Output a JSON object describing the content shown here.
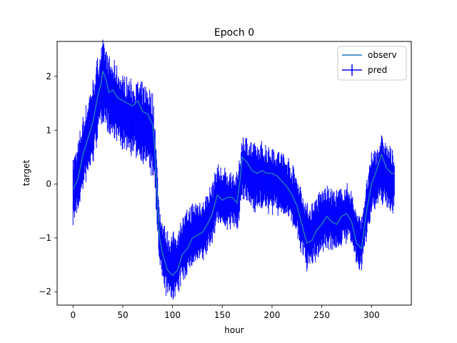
{
  "chart_data": {
    "type": "line",
    "title": "Epoch 0",
    "xlabel": "hour",
    "ylabel": "target",
    "xlim": [
      -16,
      340
    ],
    "ylim": [
      -2.25,
      2.65
    ],
    "xticks": [
      0,
      50,
      100,
      150,
      200,
      250,
      300
    ],
    "yticks": [
      -2,
      -1,
      0,
      1,
      2
    ],
    "xtick_labels": [
      "0",
      "50",
      "100",
      "150",
      "200",
      "250",
      "300"
    ],
    "ytick_labels": [
      "−2",
      "−1",
      "0",
      "1",
      "2"
    ],
    "legend": {
      "placement": "top-right",
      "entries": [
        "observ",
        "pred"
      ]
    },
    "grid": false,
    "series": [
      {
        "name": "observ",
        "color": "#1f77b4",
        "points": [
          [
            0,
            -0.1
          ],
          [
            5,
            0.1
          ],
          [
            10,
            0.55
          ],
          [
            15,
            0.85
          ],
          [
            20,
            1.15
          ],
          [
            25,
            1.65
          ],
          [
            28,
            1.85
          ],
          [
            30,
            2.1
          ],
          [
            33,
            1.95
          ],
          [
            36,
            1.7
          ],
          [
            40,
            1.75
          ],
          [
            45,
            1.6
          ],
          [
            50,
            1.55
          ],
          [
            55,
            1.5
          ],
          [
            60,
            1.45
          ],
          [
            65,
            1.55
          ],
          [
            70,
            1.35
          ],
          [
            75,
            1.3
          ],
          [
            80,
            1.1
          ],
          [
            82,
            0.7
          ],
          [
            85,
            -0.4
          ],
          [
            87,
            -1.0
          ],
          [
            90,
            -1.3
          ],
          [
            95,
            -1.6
          ],
          [
            100,
            -1.7
          ],
          [
            105,
            -1.6
          ],
          [
            110,
            -1.3
          ],
          [
            115,
            -1.2
          ],
          [
            120,
            -1.0
          ],
          [
            125,
            -0.95
          ],
          [
            130,
            -0.9
          ],
          [
            135,
            -0.75
          ],
          [
            140,
            -0.55
          ],
          [
            145,
            -0.2
          ],
          [
            150,
            -0.3
          ],
          [
            155,
            -0.25
          ],
          [
            160,
            -0.25
          ],
          [
            165,
            -0.35
          ],
          [
            168,
            0.1
          ],
          [
            170,
            0.5
          ],
          [
            175,
            0.4
          ],
          [
            180,
            0.25
          ],
          [
            185,
            0.2
          ],
          [
            190,
            0.25
          ],
          [
            195,
            0.2
          ],
          [
            200,
            0.2
          ],
          [
            205,
            0.15
          ],
          [
            210,
            0.05
          ],
          [
            215,
            -0.05
          ],
          [
            220,
            -0.2
          ],
          [
            225,
            -0.4
          ],
          [
            230,
            -0.75
          ],
          [
            235,
            -1.1
          ],
          [
            240,
            -1.05
          ],
          [
            245,
            -0.85
          ],
          [
            250,
            -0.75
          ],
          [
            255,
            -0.6
          ],
          [
            260,
            -0.7
          ],
          [
            265,
            -0.75
          ],
          [
            270,
            -0.6
          ],
          [
            275,
            -0.55
          ],
          [
            280,
            -0.7
          ],
          [
            285,
            -1.1
          ],
          [
            290,
            -1.2
          ],
          [
            295,
            -0.5
          ],
          [
            300,
            0.0
          ],
          [
            305,
            0.25
          ],
          [
            310,
            0.55
          ],
          [
            315,
            0.3
          ],
          [
            320,
            0.2
          ],
          [
            323,
            0.2
          ]
        ]
      },
      {
        "name": "pred",
        "color": "#0000ff",
        "points": [
          [
            0,
            -0.1
          ],
          [
            5,
            0.1
          ],
          [
            10,
            0.55
          ],
          [
            15,
            0.85
          ],
          [
            20,
            1.15
          ],
          [
            25,
            1.6
          ],
          [
            28,
            1.8
          ],
          [
            30,
            1.95
          ],
          [
            33,
            1.85
          ],
          [
            36,
            1.6
          ],
          [
            40,
            1.55
          ],
          [
            45,
            1.45
          ],
          [
            50,
            1.3
          ],
          [
            55,
            1.3
          ],
          [
            60,
            1.2
          ],
          [
            65,
            1.2
          ],
          [
            70,
            1.1
          ],
          [
            75,
            1.05
          ],
          [
            80,
            0.9
          ],
          [
            82,
            0.6
          ],
          [
            85,
            -0.4
          ],
          [
            87,
            -1.0
          ],
          [
            90,
            -1.3
          ],
          [
            95,
            -1.5
          ],
          [
            100,
            -1.55
          ],
          [
            105,
            -1.45
          ],
          [
            110,
            -1.2
          ],
          [
            115,
            -1.1
          ],
          [
            120,
            -0.95
          ],
          [
            125,
            -0.9
          ],
          [
            130,
            -0.85
          ],
          [
            135,
            -0.75
          ],
          [
            140,
            -0.55
          ],
          [
            145,
            -0.2
          ],
          [
            150,
            -0.25
          ],
          [
            155,
            -0.3
          ],
          [
            160,
            -0.3
          ],
          [
            165,
            -0.35
          ],
          [
            168,
            0.0
          ],
          [
            170,
            0.3
          ],
          [
            175,
            0.25
          ],
          [
            180,
            0.15
          ],
          [
            185,
            0.1
          ],
          [
            190,
            0.15
          ],
          [
            195,
            0.1
          ],
          [
            200,
            0.1
          ],
          [
            205,
            0.05
          ],
          [
            210,
            0.0
          ],
          [
            215,
            -0.05
          ],
          [
            220,
            -0.2
          ],
          [
            225,
            -0.4
          ],
          [
            230,
            -0.7
          ],
          [
            235,
            -1.0
          ],
          [
            240,
            -0.95
          ],
          [
            245,
            -0.8
          ],
          [
            250,
            -0.7
          ],
          [
            255,
            -0.6
          ],
          [
            260,
            -0.65
          ],
          [
            265,
            -0.7
          ],
          [
            270,
            -0.6
          ],
          [
            275,
            -0.55
          ],
          [
            280,
            -0.65
          ],
          [
            285,
            -1.0
          ],
          [
            290,
            -1.1
          ],
          [
            295,
            -0.5
          ],
          [
            300,
            0.0
          ],
          [
            305,
            0.1
          ],
          [
            310,
            0.3
          ],
          [
            315,
            0.15
          ],
          [
            320,
            0.05
          ],
          [
            323,
            0.05
          ]
        ],
        "error_halfwidth": [
          [
            0,
            0.55
          ],
          [
            20,
            0.7
          ],
          [
            30,
            0.65
          ],
          [
            60,
            0.6
          ],
          [
            80,
            0.7
          ],
          [
            85,
            0.5
          ],
          [
            100,
            0.55
          ],
          [
            140,
            0.5
          ],
          [
            165,
            0.45
          ],
          [
            170,
            0.55
          ],
          [
            200,
            0.55
          ],
          [
            220,
            0.5
          ],
          [
            230,
            0.55
          ],
          [
            260,
            0.5
          ],
          [
            280,
            0.45
          ],
          [
            295,
            0.45
          ],
          [
            310,
            0.55
          ],
          [
            323,
            0.5
          ]
        ]
      }
    ]
  }
}
